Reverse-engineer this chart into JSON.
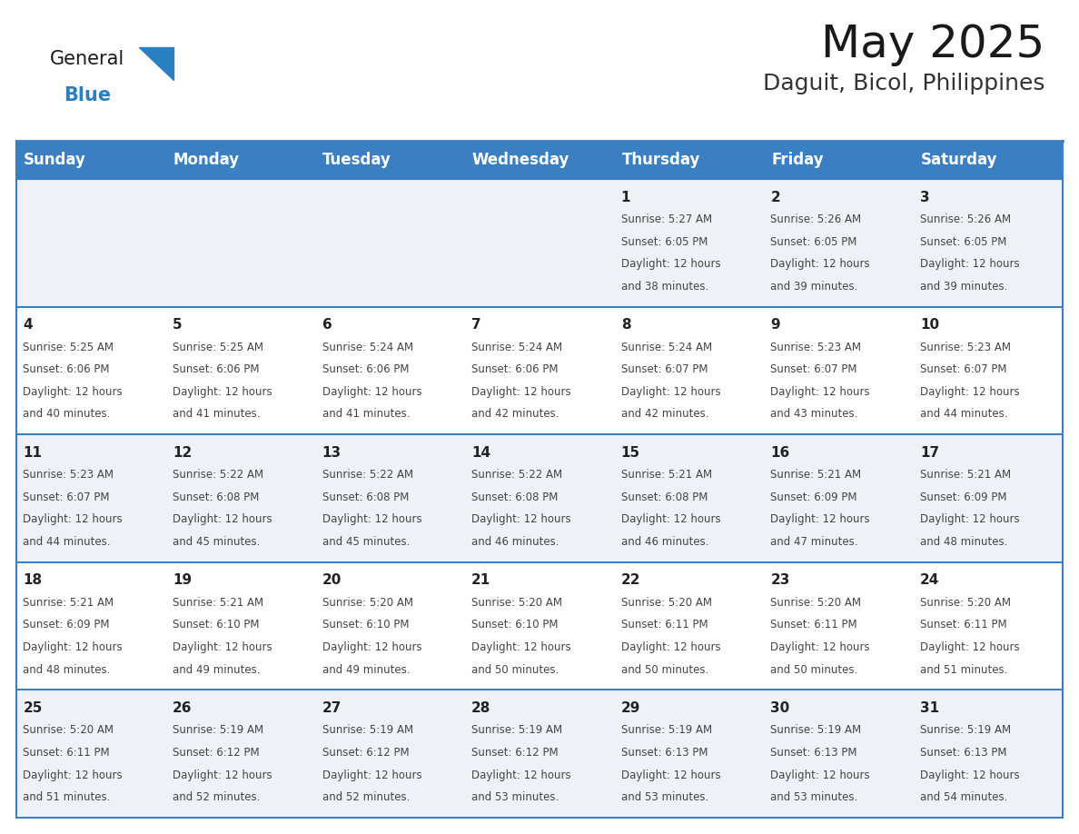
{
  "title": "May 2025",
  "subtitle": "Daguit, Bicol, Philippines",
  "days_of_week": [
    "Sunday",
    "Monday",
    "Tuesday",
    "Wednesday",
    "Thursday",
    "Friday",
    "Saturday"
  ],
  "header_bg": "#3a7fc1",
  "header_text": "#ffffff",
  "row_bg_even": "#eef2f7",
  "row_bg_odd": "#ffffff",
  "border_color": "#3a7fc1",
  "day_number_color": "#222222",
  "cell_text_color": "#444444",
  "title_color": "#1a1a1a",
  "subtitle_color": "#333333",
  "logo_general_color": "#1a1a1a",
  "logo_blue_color": "#2a7fc1",
  "calendar": [
    [
      {
        "day": "",
        "sunrise": "",
        "sunset": "",
        "daylight": ""
      },
      {
        "day": "",
        "sunrise": "",
        "sunset": "",
        "daylight": ""
      },
      {
        "day": "",
        "sunrise": "",
        "sunset": "",
        "daylight": ""
      },
      {
        "day": "",
        "sunrise": "",
        "sunset": "",
        "daylight": ""
      },
      {
        "day": "1",
        "sunrise": "5:27 AM",
        "sunset": "6:05 PM",
        "daylight": "12 hours and 38 minutes."
      },
      {
        "day": "2",
        "sunrise": "5:26 AM",
        "sunset": "6:05 PM",
        "daylight": "12 hours and 39 minutes."
      },
      {
        "day": "3",
        "sunrise": "5:26 AM",
        "sunset": "6:05 PM",
        "daylight": "12 hours and 39 minutes."
      }
    ],
    [
      {
        "day": "4",
        "sunrise": "5:25 AM",
        "sunset": "6:06 PM",
        "daylight": "12 hours and 40 minutes."
      },
      {
        "day": "5",
        "sunrise": "5:25 AM",
        "sunset": "6:06 PM",
        "daylight": "12 hours and 41 minutes."
      },
      {
        "day": "6",
        "sunrise": "5:24 AM",
        "sunset": "6:06 PM",
        "daylight": "12 hours and 41 minutes."
      },
      {
        "day": "7",
        "sunrise": "5:24 AM",
        "sunset": "6:06 PM",
        "daylight": "12 hours and 42 minutes."
      },
      {
        "day": "8",
        "sunrise": "5:24 AM",
        "sunset": "6:07 PM",
        "daylight": "12 hours and 42 minutes."
      },
      {
        "day": "9",
        "sunrise": "5:23 AM",
        "sunset": "6:07 PM",
        "daylight": "12 hours and 43 minutes."
      },
      {
        "day": "10",
        "sunrise": "5:23 AM",
        "sunset": "6:07 PM",
        "daylight": "12 hours and 44 minutes."
      }
    ],
    [
      {
        "day": "11",
        "sunrise": "5:23 AM",
        "sunset": "6:07 PM",
        "daylight": "12 hours and 44 minutes."
      },
      {
        "day": "12",
        "sunrise": "5:22 AM",
        "sunset": "6:08 PM",
        "daylight": "12 hours and 45 minutes."
      },
      {
        "day": "13",
        "sunrise": "5:22 AM",
        "sunset": "6:08 PM",
        "daylight": "12 hours and 45 minutes."
      },
      {
        "day": "14",
        "sunrise": "5:22 AM",
        "sunset": "6:08 PM",
        "daylight": "12 hours and 46 minutes."
      },
      {
        "day": "15",
        "sunrise": "5:21 AM",
        "sunset": "6:08 PM",
        "daylight": "12 hours and 46 minutes."
      },
      {
        "day": "16",
        "sunrise": "5:21 AM",
        "sunset": "6:09 PM",
        "daylight": "12 hours and 47 minutes."
      },
      {
        "day": "17",
        "sunrise": "5:21 AM",
        "sunset": "6:09 PM",
        "daylight": "12 hours and 48 minutes."
      }
    ],
    [
      {
        "day": "18",
        "sunrise": "5:21 AM",
        "sunset": "6:09 PM",
        "daylight": "12 hours and 48 minutes."
      },
      {
        "day": "19",
        "sunrise": "5:21 AM",
        "sunset": "6:10 PM",
        "daylight": "12 hours and 49 minutes."
      },
      {
        "day": "20",
        "sunrise": "5:20 AM",
        "sunset": "6:10 PM",
        "daylight": "12 hours and 49 minutes."
      },
      {
        "day": "21",
        "sunrise": "5:20 AM",
        "sunset": "6:10 PM",
        "daylight": "12 hours and 50 minutes."
      },
      {
        "day": "22",
        "sunrise": "5:20 AM",
        "sunset": "6:11 PM",
        "daylight": "12 hours and 50 minutes."
      },
      {
        "day": "23",
        "sunrise": "5:20 AM",
        "sunset": "6:11 PM",
        "daylight": "12 hours and 50 minutes."
      },
      {
        "day": "24",
        "sunrise": "5:20 AM",
        "sunset": "6:11 PM",
        "daylight": "12 hours and 51 minutes."
      }
    ],
    [
      {
        "day": "25",
        "sunrise": "5:20 AM",
        "sunset": "6:11 PM",
        "daylight": "12 hours and 51 minutes."
      },
      {
        "day": "26",
        "sunrise": "5:19 AM",
        "sunset": "6:12 PM",
        "daylight": "12 hours and 52 minutes."
      },
      {
        "day": "27",
        "sunrise": "5:19 AM",
        "sunset": "6:12 PM",
        "daylight": "12 hours and 52 minutes."
      },
      {
        "day": "28",
        "sunrise": "5:19 AM",
        "sunset": "6:12 PM",
        "daylight": "12 hours and 53 minutes."
      },
      {
        "day": "29",
        "sunrise": "5:19 AM",
        "sunset": "6:13 PM",
        "daylight": "12 hours and 53 minutes."
      },
      {
        "day": "30",
        "sunrise": "5:19 AM",
        "sunset": "6:13 PM",
        "daylight": "12 hours and 53 minutes."
      },
      {
        "day": "31",
        "sunrise": "5:19 AM",
        "sunset": "6:13 PM",
        "daylight": "12 hours and 54 minutes."
      }
    ]
  ],
  "fig_width": 11.88,
  "fig_height": 9.18,
  "dpi": 100,
  "title_fontsize": 36,
  "subtitle_fontsize": 18,
  "header_fontsize": 12,
  "day_num_fontsize": 11,
  "cell_fontsize": 8.5,
  "logo_general_fontsize": 15,
  "logo_blue_fontsize": 15
}
